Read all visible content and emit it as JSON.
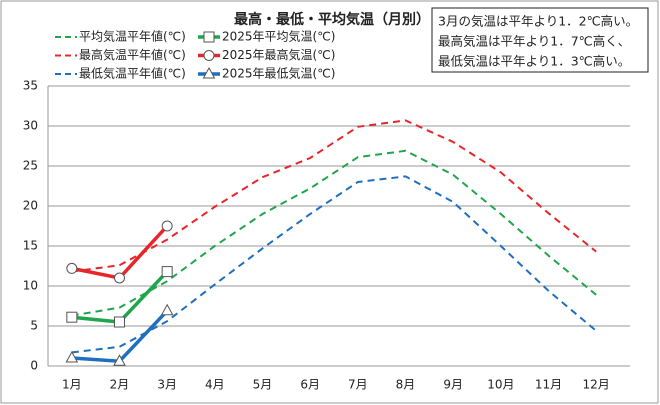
{
  "chart_data": {
    "type": "line",
    "title": "最高・最低・平均気温（月別）",
    "annotation": [
      "3月の気温は平年より1．2℃高い。",
      "最高気温は平年より1．7℃高く、",
      "最低気温は平年より1．3℃高い。"
    ],
    "categories": [
      "1月",
      "2月",
      "3月",
      "4月",
      "5月",
      "6月",
      "7月",
      "8月",
      "9月",
      "10月",
      "11月",
      "12月"
    ],
    "ylim": [
      0,
      35
    ],
    "yticks": [
      0,
      5,
      10,
      15,
      20,
      25,
      30,
      35
    ],
    "grid": true,
    "series": [
      {
        "name": "平均気温平年値(℃)",
        "color": "#1fa64a",
        "dash": true,
        "marker": null,
        "values": [
          6.3,
          7.3,
          10.6,
          15.0,
          19.0,
          22.2,
          26.1,
          26.9,
          23.9,
          19.0,
          13.8,
          8.9
        ]
      },
      {
        "name": "2025年平均気温(℃)",
        "color": "#1fa64a",
        "dash": false,
        "marker": "square",
        "values": [
          6.1,
          5.5,
          11.8,
          null,
          null,
          null,
          null,
          null,
          null,
          null,
          null,
          null
        ]
      },
      {
        "name": "最高気温平年値(℃)",
        "color": "#e8262a",
        "dash": true,
        "marker": null,
        "values": [
          11.8,
          12.6,
          15.8,
          19.9,
          23.6,
          26.0,
          29.9,
          30.7,
          28.0,
          24.2,
          19.1,
          14.3
        ]
      },
      {
        "name": "2025年最高気温(℃)",
        "color": "#e8262a",
        "dash": false,
        "marker": "circle",
        "values": [
          12.2,
          11.0,
          17.5,
          null,
          null,
          null,
          null,
          null,
          null,
          null,
          null,
          null
        ]
      },
      {
        "name": "最低気温平年値(℃)",
        "color": "#1f6fbf",
        "dash": true,
        "marker": null,
        "values": [
          1.7,
          2.4,
          5.6,
          10.2,
          14.7,
          19.0,
          23.0,
          23.7,
          20.5,
          15.0,
          9.4,
          4.4
        ]
      },
      {
        "name": "2025年最低気温(℃)",
        "color": "#1f6fbf",
        "dash": false,
        "marker": "triangle",
        "values": [
          1.0,
          0.6,
          6.9,
          null,
          null,
          null,
          null,
          null,
          null,
          null,
          null,
          null
        ]
      }
    ]
  }
}
